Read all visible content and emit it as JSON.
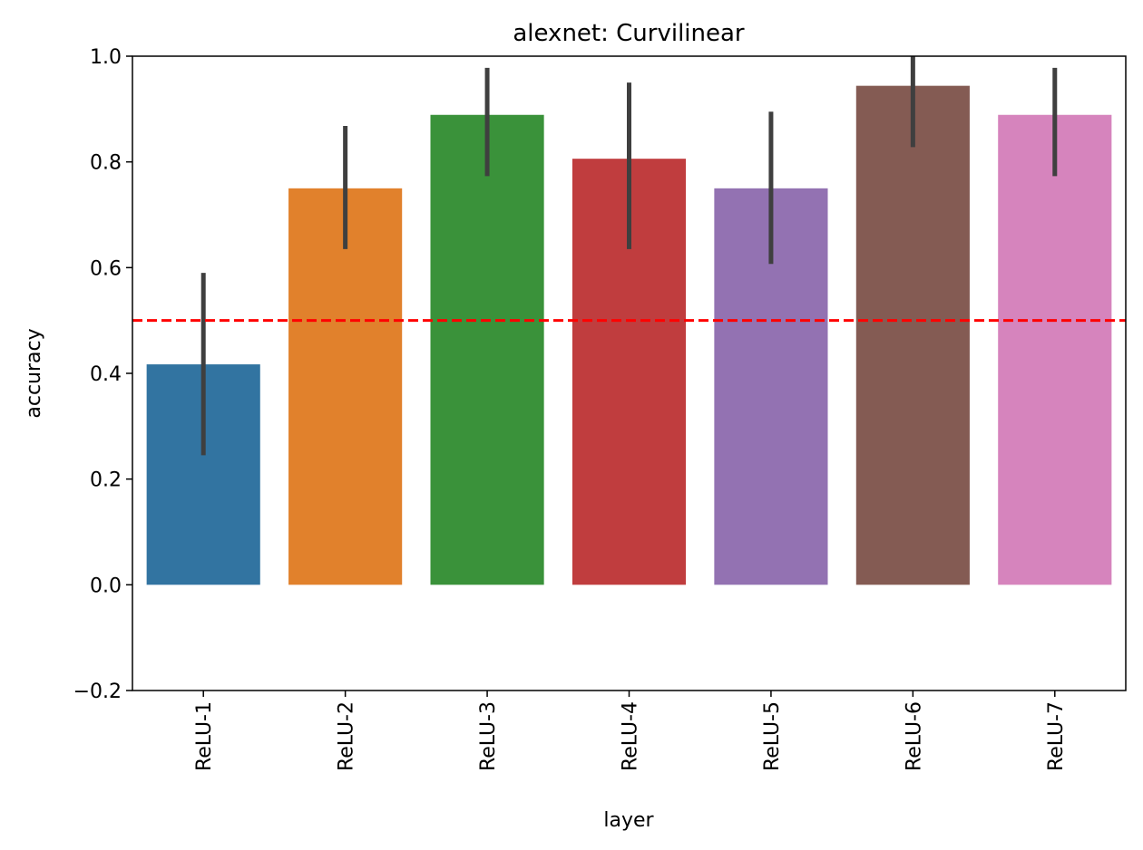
{
  "chart_data": {
    "type": "bar",
    "title": "alexnet: Curvilinear",
    "xlabel": "layer",
    "ylabel": "accuracy",
    "ylim": [
      -0.2,
      1.0
    ],
    "yticks": [
      -0.2,
      0.0,
      0.2,
      0.4,
      0.6,
      0.8,
      1.0
    ],
    "ytick_labels": [
      "−0.2",
      "0.0",
      "0.2",
      "0.4",
      "0.6",
      "0.8",
      "1.0"
    ],
    "categories": [
      "ReLU-1",
      "ReLU-2",
      "ReLU-3",
      "ReLU-4",
      "ReLU-5",
      "ReLU-6",
      "ReLU-7"
    ],
    "values": [
      0.417,
      0.75,
      0.889,
      0.806,
      0.75,
      0.944,
      0.889
    ],
    "error_low": [
      0.245,
      0.635,
      0.773,
      0.635,
      0.607,
      0.828,
      0.773
    ],
    "error_high": [
      0.59,
      0.868,
      0.978,
      0.95,
      0.895,
      1.0,
      0.978
    ],
    "colors": [
      "#3274a1",
      "#e1812c",
      "#3a923a",
      "#c03d3e",
      "#9372b2",
      "#845b53",
      "#d684bd"
    ],
    "error_color": "#3f3f3f",
    "reference_line": {
      "y": 0.5,
      "color": "#ff0000",
      "style": "dashed"
    },
    "grid": false,
    "legend": "none"
  }
}
